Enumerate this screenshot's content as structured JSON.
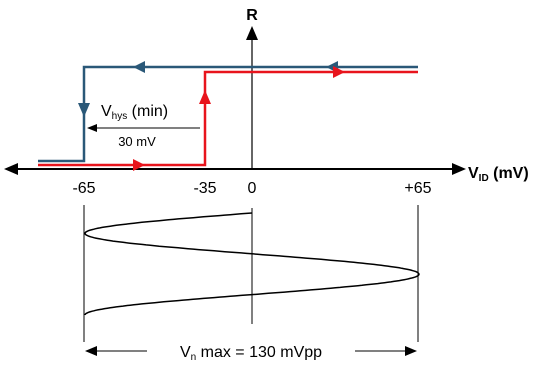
{
  "axes": {
    "y_label": "R",
    "x_label_main": "V",
    "x_label_sub": "ID",
    "x_label_unit": " (mV)"
  },
  "ticks": [
    {
      "key": "neg65",
      "label": "-65"
    },
    {
      "key": "neg35",
      "label": "-35"
    },
    {
      "key": "zero",
      "label": "0"
    },
    {
      "key": "pos65",
      "label": "+65"
    }
  ],
  "hysteresis": {
    "label_main": "V",
    "label_sub": "hys",
    "label_rest": " (min)",
    "value": "30 mV"
  },
  "noise": {
    "label_main": "V",
    "label_sub": "n",
    "label_rest": " max = 130 mVpp"
  },
  "colors": {
    "falling_trace": "#2a5878",
    "rising_trace": "#e8141c",
    "axis": "#000000"
  }
}
